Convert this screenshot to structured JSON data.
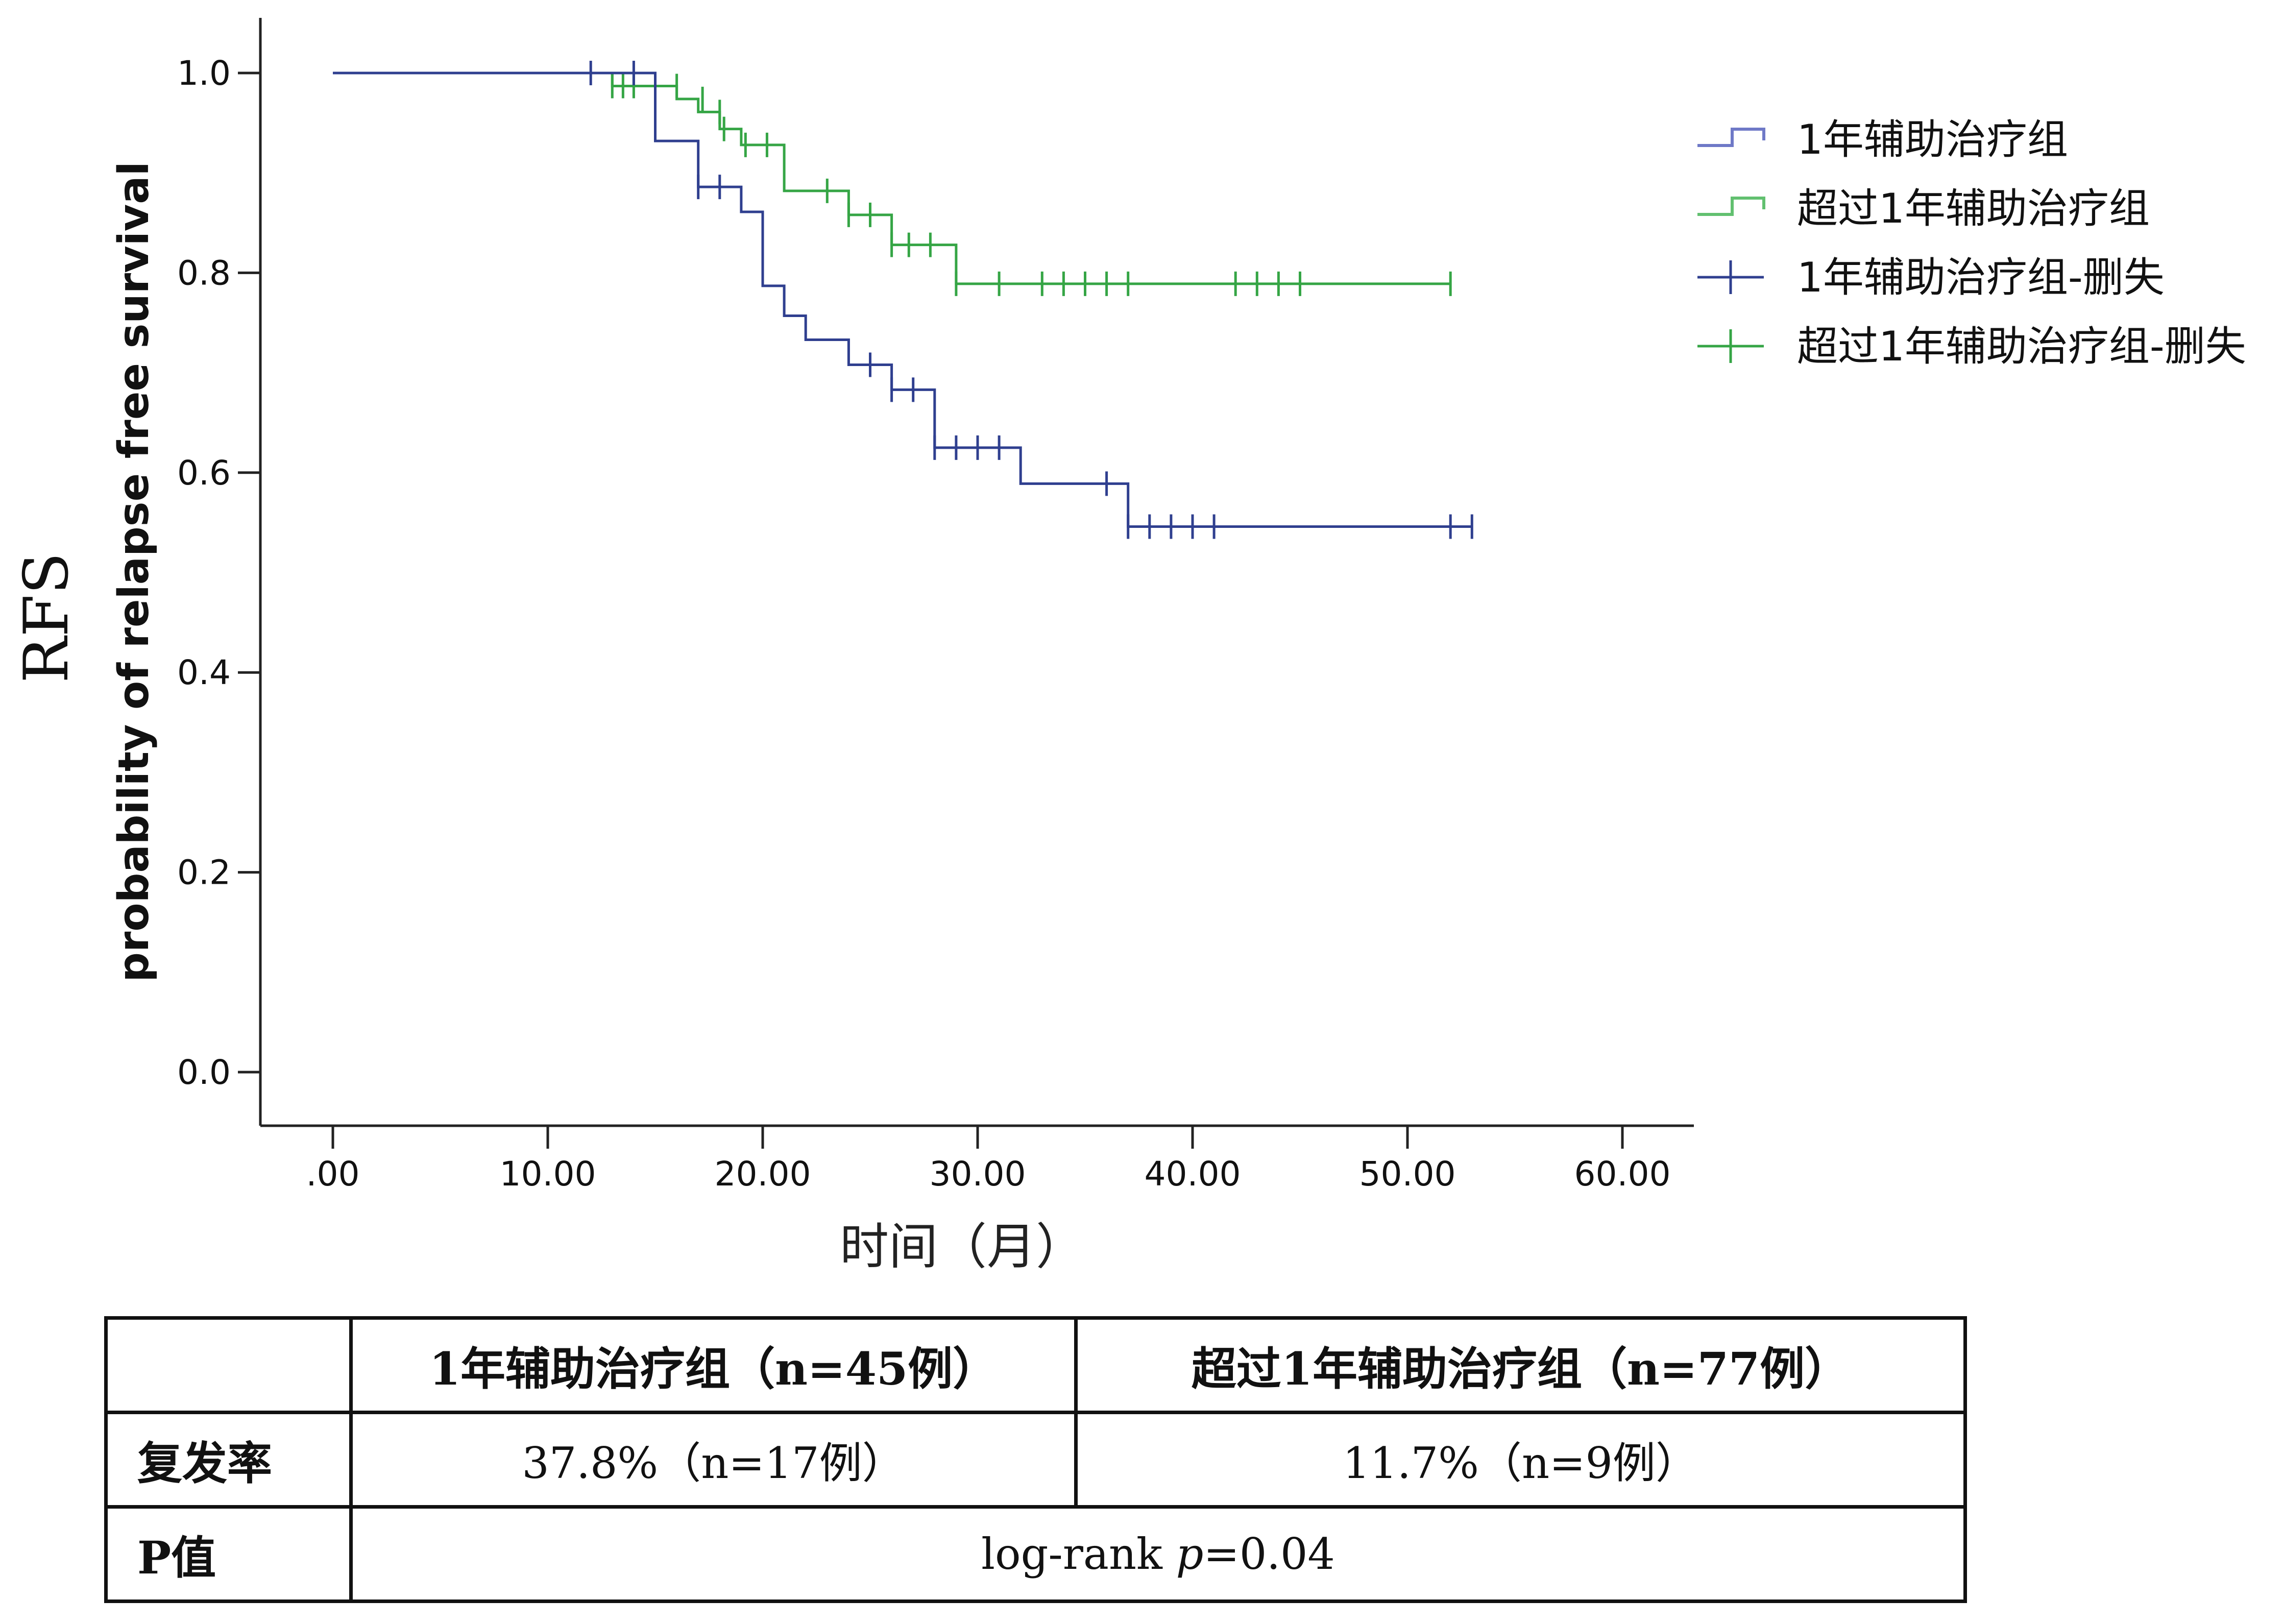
{
  "outer_title": "RFS",
  "colors": {
    "group1": "#2f3f8f",
    "group2": "#35a545",
    "legend_group1": "#6f79c7",
    "legend_group2": "#62c070",
    "axis": "#222222"
  },
  "chart_data": {
    "type": "line",
    "subtype": "kaplan-meier",
    "xlabel": "时间（月）",
    "ylabel": "probability of relapse free survival",
    "xlim": [
      0,
      60
    ],
    "ylim": [
      0,
      1
    ],
    "x_ticks": [
      0,
      10,
      20,
      30,
      40,
      50,
      60
    ],
    "x_tick_labels": [
      ".00",
      "10.00",
      "20.00",
      "30.00",
      "40.00",
      "50.00",
      "60.00"
    ],
    "y_ticks": [
      0,
      0.2,
      0.4,
      0.6,
      0.8,
      1.0
    ],
    "y_tick_labels": [
      "0.0",
      "0.2",
      "0.4",
      "0.6",
      "0.8",
      "1.0"
    ],
    "grid": false,
    "legend_position": "top-right",
    "legend": [
      {
        "label": "1年辅助治疗组",
        "kind": "step",
        "color_key": "legend_group1"
      },
      {
        "label": "超过1年辅助治疗组",
        "kind": "step",
        "color_key": "legend_group2"
      },
      {
        "label": "1年辅助治疗组-删失",
        "kind": "censor",
        "color_key": "group1"
      },
      {
        "label": "超过1年辅助治疗组-删失",
        "kind": "censor",
        "color_key": "group2"
      }
    ],
    "series": [
      {
        "name": "超过1年辅助治疗组",
        "color_key": "group2",
        "steps": [
          [
            0,
            1.0
          ],
          [
            13,
            0.987
          ],
          [
            16,
            0.974
          ],
          [
            17,
            0.961
          ],
          [
            18,
            0.944
          ],
          [
            19,
            0.928
          ],
          [
            21,
            0.882
          ],
          [
            24,
            0.858
          ],
          [
            26,
            0.828
          ],
          [
            29,
            0.789
          ]
        ],
        "end_x": 52,
        "censored": [
          [
            13,
            0.987
          ],
          [
            13.5,
            0.987
          ],
          [
            14,
            0.987
          ],
          [
            15,
            0.987
          ],
          [
            16,
            0.987
          ],
          [
            17.2,
            0.974
          ],
          [
            18,
            0.961
          ],
          [
            18.2,
            0.944
          ],
          [
            19.2,
            0.928
          ],
          [
            20.2,
            0.928
          ],
          [
            23,
            0.882
          ],
          [
            24,
            0.858
          ],
          [
            25,
            0.858
          ],
          [
            26,
            0.828
          ],
          [
            26.8,
            0.828
          ],
          [
            27.8,
            0.828
          ],
          [
            29,
            0.789
          ],
          [
            31,
            0.789
          ],
          [
            33,
            0.789
          ],
          [
            34,
            0.789
          ],
          [
            35,
            0.789
          ],
          [
            36,
            0.789
          ],
          [
            37,
            0.789
          ],
          [
            42,
            0.789
          ],
          [
            43,
            0.789
          ],
          [
            44,
            0.789
          ],
          [
            45,
            0.789
          ],
          [
            52,
            0.789
          ]
        ]
      },
      {
        "name": "1年辅助治疗组",
        "color_key": "group1",
        "steps": [
          [
            0,
            1.0
          ],
          [
            15,
            0.932
          ],
          [
            17,
            0.886
          ],
          [
            19,
            0.861
          ],
          [
            20,
            0.787
          ],
          [
            21,
            0.757
          ],
          [
            22,
            0.733
          ],
          [
            24,
            0.708
          ],
          [
            26,
            0.683
          ],
          [
            28,
            0.625
          ],
          [
            32,
            0.589
          ],
          [
            37,
            0.546
          ]
        ],
        "end_x": 53,
        "censored": [
          [
            12,
            1.0
          ],
          [
            14,
            1.0
          ],
          [
            17,
            0.886
          ],
          [
            18,
            0.886
          ],
          [
            25,
            0.708
          ],
          [
            26,
            0.683
          ],
          [
            27,
            0.683
          ],
          [
            28,
            0.625
          ],
          [
            29,
            0.625
          ],
          [
            30,
            0.625
          ],
          [
            31,
            0.625
          ],
          [
            36,
            0.589
          ],
          [
            37,
            0.546
          ],
          [
            38,
            0.546
          ],
          [
            39,
            0.546
          ],
          [
            40,
            0.546
          ],
          [
            41,
            0.546
          ],
          [
            52,
            0.546
          ],
          [
            53,
            0.546
          ]
        ]
      }
    ]
  },
  "table": {
    "header": [
      "",
      "1年辅助治疗组（n=45例）",
      "超过1年辅助治疗组（n=77例）"
    ],
    "rows": [
      {
        "label": "复发率",
        "group1": "37.8%（n=17例）",
        "group2": "11.7%（n=9例）"
      },
      {
        "label": "P值",
        "pvalue_prefix": "log-rank ",
        "pvalue_italic": "p",
        "pvalue_suffix": "=0.04"
      }
    ]
  }
}
